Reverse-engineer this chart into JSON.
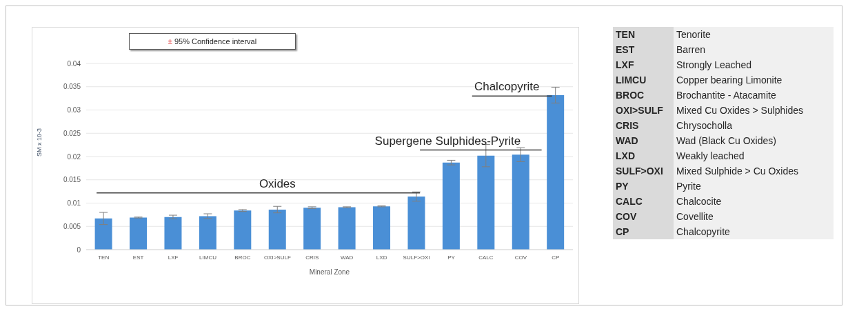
{
  "chart_data": [
    {
      "type": "bar",
      "xlabel": "Mineral Zone",
      "ylabel": "SM x 10-3",
      "categories": [
        "TEN",
        "EST",
        "LXF",
        "LIMCU",
        "BROC",
        "OXI>SULF",
        "CRIS",
        "WAD",
        "LXD",
        "SULF>OXI",
        "PY",
        "CALC",
        "COV",
        "CP"
      ],
      "values": [
        0.0067,
        0.0069,
        0.007,
        0.0072,
        0.0084,
        0.0086,
        0.009,
        0.0091,
        0.0093,
        0.0114,
        0.0187,
        0.0202,
        0.0204,
        0.0332
      ],
      "errors": [
        0.0013,
        0.0001,
        0.0004,
        0.0005,
        0.0002,
        0.0007,
        0.0002,
        0.0001,
        0.0001,
        0.001,
        0.0005,
        0.0024,
        0.0015,
        0.0017
      ],
      "color": "#4a8fd6",
      "ylim": [
        0,
        0.04
      ],
      "yticks": [
        0,
        0.005,
        0.01,
        0.015,
        0.02,
        0.025,
        0.03,
        0.035,
        0.04
      ],
      "grid": "y",
      "legend_title": "± 95% Confidence interval",
      "ref_lines": [
        {
          "axis": "y",
          "value": 0.0122,
          "label": "Oxides",
          "color": "#404040"
        },
        {
          "axis": "y",
          "value": 0.0214,
          "label": "Supergene Sulphides-Pyrite",
          "color": "#404040"
        },
        {
          "axis": "y",
          "value": 0.033,
          "label": "Chalcopyrite",
          "color": "#404040"
        }
      ]
    },
    {
      "type": "other",
      "annotations": [
        "TEN",
        "Tenorite",
        "EST",
        "Barren",
        "LXF",
        "Strongly Leached",
        "LIMCU",
        "Copper bearing Limonite",
        "BROC",
        "Brochantite - Atacamite",
        "OXI>SULF",
        "Mixed Cu Oxides > Sulphides",
        "CRIS",
        "Chrysocholla",
        "WAD",
        "Wad (Black Cu Oxides)",
        "LXD",
        "Weakly leached",
        "SULF>OXI",
        "Mixed Sulphide > Cu Oxides",
        "PY",
        "Pyrite",
        "CALC",
        "Chalcocite",
        "COV",
        "Covellite",
        "CP",
        "Chalcopyrite"
      ]
    }
  ]
}
